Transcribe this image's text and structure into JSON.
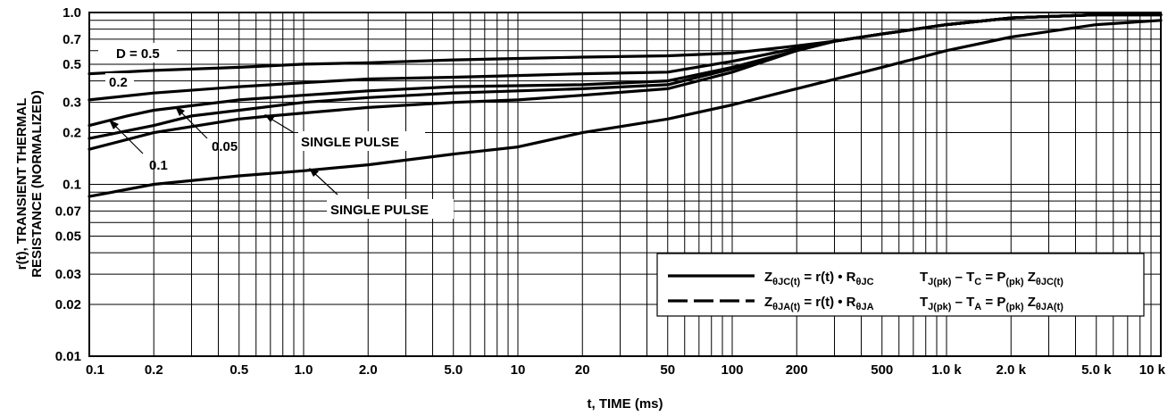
{
  "chart_data": {
    "type": "line",
    "title": "",
    "xlabel": "t, TIME (ms)",
    "ylabel_line1": "r(t), TRANSIENT THERMAL",
    "ylabel_line2": "RESISTANCE (NORMALIZED)",
    "x_scale": "log",
    "y_scale": "log",
    "xlim": [
      0.1,
      10000
    ],
    "ylim": [
      0.01,
      1.0
    ],
    "grid": true,
    "x_ticks": [
      {
        "value": 0.1,
        "label": "0.1"
      },
      {
        "value": 0.2,
        "label": "0.2"
      },
      {
        "value": 0.5,
        "label": "0.5"
      },
      {
        "value": 1,
        "label": "1.0"
      },
      {
        "value": 2,
        "label": "2.0"
      },
      {
        "value": 5,
        "label": "5.0"
      },
      {
        "value": 10,
        "label": "10"
      },
      {
        "value": 20,
        "label": "20"
      },
      {
        "value": 50,
        "label": "50"
      },
      {
        "value": 100,
        "label": "100"
      },
      {
        "value": 200,
        "label": "200"
      },
      {
        "value": 500,
        "label": "500"
      },
      {
        "value": 1000,
        "label": "1.0 k"
      },
      {
        "value": 2000,
        "label": "2.0 k"
      },
      {
        "value": 5000,
        "label": "5.0 k"
      },
      {
        "value": 10000,
        "label": "10 k"
      }
    ],
    "y_ticks": [
      {
        "value": 1.0,
        "label": "1.0"
      },
      {
        "value": 0.7,
        "label": "0.7"
      },
      {
        "value": 0.5,
        "label": "0.5"
      },
      {
        "value": 0.3,
        "label": "0.3"
      },
      {
        "value": 0.2,
        "label": "0.2"
      },
      {
        "value": 0.1,
        "label": "0.1"
      },
      {
        "value": 0.07,
        "label": "0.07"
      },
      {
        "value": 0.05,
        "label": "0.05"
      },
      {
        "value": 0.03,
        "label": "0.03"
      },
      {
        "value": 0.02,
        "label": "0.02"
      },
      {
        "value": 0.01,
        "label": "0.01"
      }
    ],
    "series": [
      {
        "name": "D = 0.5",
        "style": "solid",
        "points": [
          [
            0.1,
            0.44
          ],
          [
            0.2,
            0.46
          ],
          [
            0.5,
            0.48
          ],
          [
            1,
            0.5
          ],
          [
            2,
            0.51
          ],
          [
            5,
            0.53
          ],
          [
            10,
            0.54
          ],
          [
            20,
            0.55
          ],
          [
            50,
            0.56
          ],
          [
            100,
            0.58
          ],
          [
            200,
            0.64
          ],
          [
            300,
            0.68
          ],
          [
            500,
            0.75
          ],
          [
            1000,
            0.85
          ],
          [
            2000,
            0.93
          ],
          [
            5000,
            0.97
          ],
          [
            10000,
            0.97
          ]
        ]
      },
      {
        "name": "0.2",
        "style": "solid",
        "points": [
          [
            0.1,
            0.31
          ],
          [
            0.2,
            0.34
          ],
          [
            0.5,
            0.37
          ],
          [
            1,
            0.39
          ],
          [
            2,
            0.41
          ],
          [
            5,
            0.42
          ],
          [
            10,
            0.43
          ],
          [
            20,
            0.44
          ],
          [
            50,
            0.45
          ],
          [
            100,
            0.52
          ],
          [
            200,
            0.62
          ],
          [
            300,
            0.68
          ],
          [
            500,
            0.75
          ],
          [
            1000,
            0.85
          ],
          [
            2000,
            0.93
          ],
          [
            5000,
            0.97
          ],
          [
            10000,
            0.97
          ]
        ]
      },
      {
        "name": "0.1",
        "style": "solid",
        "points": [
          [
            0.1,
            0.22
          ],
          [
            0.15,
            0.25
          ],
          [
            0.2,
            0.27
          ],
          [
            0.5,
            0.31
          ],
          [
            1,
            0.33
          ],
          [
            2,
            0.35
          ],
          [
            5,
            0.37
          ],
          [
            10,
            0.375
          ],
          [
            20,
            0.38
          ],
          [
            50,
            0.4
          ],
          [
            100,
            0.48
          ],
          [
            200,
            0.6
          ],
          [
            300,
            0.68
          ],
          [
            500,
            0.75
          ],
          [
            1000,
            0.85
          ],
          [
            2000,
            0.93
          ],
          [
            5000,
            0.97
          ],
          [
            10000,
            0.97
          ]
        ]
      },
      {
        "name": "0.05",
        "style": "solid",
        "points": [
          [
            0.1,
            0.185
          ],
          [
            0.2,
            0.22
          ],
          [
            0.3,
            0.25
          ],
          [
            0.5,
            0.27
          ],
          [
            1,
            0.3
          ],
          [
            2,
            0.32
          ],
          [
            5,
            0.34
          ],
          [
            10,
            0.35
          ],
          [
            20,
            0.36
          ],
          [
            50,
            0.38
          ],
          [
            100,
            0.47
          ],
          [
            200,
            0.6
          ],
          [
            300,
            0.68
          ],
          [
            500,
            0.75
          ],
          [
            1000,
            0.85
          ],
          [
            2000,
            0.93
          ],
          [
            5000,
            0.97
          ],
          [
            10000,
            0.97
          ]
        ]
      },
      {
        "name": "SINGLE PULSE (ZθJC)",
        "style": "solid",
        "points": [
          [
            0.1,
            0.16
          ],
          [
            0.2,
            0.2
          ],
          [
            0.5,
            0.24
          ],
          [
            0.7,
            0.25
          ],
          [
            1,
            0.26
          ],
          [
            2,
            0.28
          ],
          [
            5,
            0.3
          ],
          [
            10,
            0.31
          ],
          [
            20,
            0.33
          ],
          [
            50,
            0.36
          ],
          [
            100,
            0.45
          ],
          [
            200,
            0.6
          ],
          [
            300,
            0.68
          ],
          [
            500,
            0.75
          ],
          [
            1000,
            0.85
          ],
          [
            2000,
            0.93
          ],
          [
            5000,
            0.97
          ],
          [
            10000,
            0.97
          ]
        ]
      },
      {
        "name": "SINGLE PULSE (ZθJA)",
        "style": "solid",
        "points": [
          [
            0.1,
            0.085
          ],
          [
            0.2,
            0.1
          ],
          [
            0.5,
            0.112
          ],
          [
            1,
            0.12
          ],
          [
            2,
            0.13
          ],
          [
            5,
            0.15
          ],
          [
            10,
            0.165
          ],
          [
            20,
            0.2
          ],
          [
            50,
            0.24
          ],
          [
            100,
            0.29
          ],
          [
            200,
            0.36
          ],
          [
            500,
            0.48
          ],
          [
            1000,
            0.6
          ],
          [
            2000,
            0.72
          ],
          [
            5000,
            0.85
          ],
          [
            10000,
            0.9
          ]
        ]
      }
    ],
    "annotations": [
      {
        "text": "D = 0.5"
      },
      {
        "text": "0.2"
      },
      {
        "text": "0.1"
      },
      {
        "text": "0.05"
      },
      {
        "text": "SINGLE PULSE"
      },
      {
        "text": "SINGLE PULSE"
      }
    ],
    "legend": {
      "placement": "bottom-right",
      "entries": [
        {
          "style": "solid",
          "equations": "ZθJC(t) = r(t) • RθJC    TJ(pk) – TC = P(pk) ZθJC(t)"
        },
        {
          "style": "dashed",
          "equations": "ZθJA(t) = r(t) • RθJA    TJ(pk) – TA = P(pk) ZθJA(t)"
        }
      ]
    }
  }
}
